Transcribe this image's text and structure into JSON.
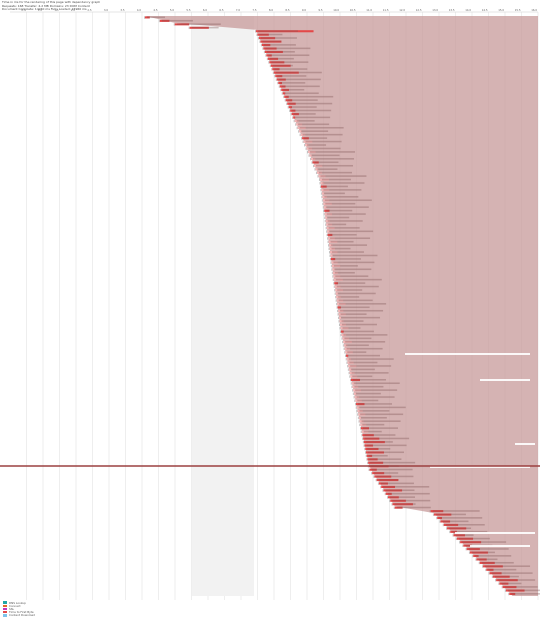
{
  "header": {
    "lines": [
      "Time in ms for the rendering of this page with dependency graph",
      "Requests: 168  Transfer: 4.2 MB  Domains: 23  DOM Content",
      "Document Complete: 14240 ms   Fully Loaded: 15960 ms"
    ]
  },
  "timeline": {
    "ticks": [
      "0.5",
      "1.0",
      "1.5",
      "2.0",
      "2.5",
      "3.0",
      "3.5",
      "4.0",
      "4.5",
      "5.0",
      "5.5",
      "6.0",
      "6.5",
      "7.0",
      "7.5",
      "8.0",
      "8.5",
      "9.0",
      "9.5",
      "10.0",
      "10.5",
      "11.0",
      "11.5",
      "12.0",
      "12.5",
      "13.0",
      "13.5",
      "14.0",
      "14.5",
      "15.0",
      "15.5",
      "16.0"
    ],
    "request_count": 168,
    "marker_label": "Document Complete"
  },
  "legend": {
    "items": [
      {
        "label": "DNS Lookup",
        "color": "#1fa7a7"
      },
      {
        "label": "Connect",
        "color": "#e06a2a"
      },
      {
        "label": "SSL",
        "color": "#c233c2"
      },
      {
        "label": "Time to First Byte",
        "color": "#e34848"
      },
      {
        "label": "Content Download",
        "color": "#7ec3ea"
      }
    ]
  },
  "colors": {
    "overlay": "#c79a9a",
    "bar": "#e34848",
    "bar_light": "#f3b5b5",
    "pending": "#f2f2f2",
    "marker": "#9b4040",
    "grid": "#dcdcdc"
  }
}
